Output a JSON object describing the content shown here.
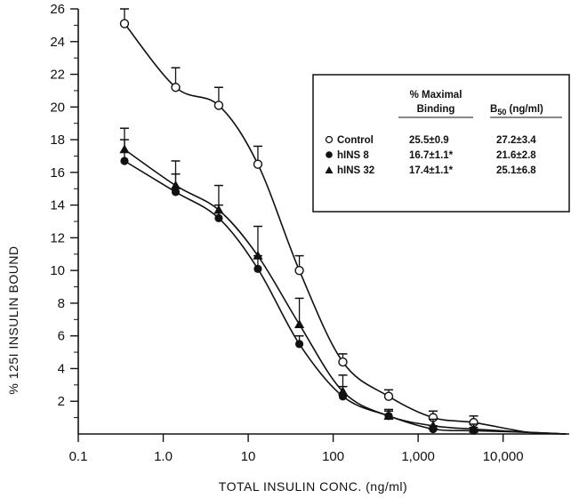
{
  "chart_data": {
    "type": "scatter",
    "xlabel": "TOTAL INSULIN CONC. (ng/ml)",
    "ylabel": "% 125I INSULIN BOUND",
    "x_scale": "log",
    "xlim": [
      0.1,
      60000
    ],
    "ylim": [
      0,
      26
    ],
    "x_ticks": [
      0.1,
      1,
      10,
      100,
      1000,
      10000
    ],
    "x_tick_labels": [
      "0.1",
      "1.0",
      "10",
      "100",
      "1,000",
      "10,000"
    ],
    "y_ticks": [
      2,
      4,
      6,
      8,
      10,
      12,
      14,
      16,
      18,
      20,
      22,
      24,
      26
    ],
    "grid": false,
    "legend_position": "top-right",
    "series": [
      {
        "name": "Control",
        "marker": "open-circle",
        "x": [
          0.35,
          1.4,
          4.5,
          13,
          40,
          130,
          450,
          1500,
          4500
        ],
        "y": [
          25.1,
          21.2,
          20.1,
          16.5,
          10.0,
          4.4,
          2.3,
          1.0,
          0.7
        ],
        "err": [
          0.9,
          1.2,
          1.1,
          1.1,
          0.9,
          0.5,
          0.4,
          0.4,
          0.4
        ]
      },
      {
        "name": "hINS 8",
        "marker": "filled-circle",
        "x": [
          0.35,
          1.4,
          4.5,
          13,
          40,
          130,
          450,
          1500,
          4500
        ],
        "y": [
          16.7,
          14.8,
          13.2,
          10.1,
          5.5,
          2.3,
          1.1,
          0.3,
          0.2
        ],
        "err": [
          1.3,
          1.1,
          0.8,
          0.8,
          0.5,
          0.6,
          0.3,
          0.2,
          0.2
        ]
      },
      {
        "name": "hINS 32",
        "marker": "filled-triangle",
        "x": [
          0.35,
          1.4,
          4.5,
          13,
          40,
          130,
          450,
          1500,
          4500
        ],
        "y": [
          17.4,
          15.2,
          13.7,
          10.9,
          6.7,
          2.6,
          1.1,
          0.5,
          0.3
        ],
        "err": [
          1.3,
          1.5,
          1.5,
          1.8,
          1.6,
          1.0,
          0.4,
          0.4,
          0.3
        ]
      }
    ],
    "legend_table": {
      "col_maximal": "% Maximal",
      "col_binding": "Binding",
      "col_b50_main": "B",
      "col_b50_sub": "50",
      "col_b50_unit": " (ng/ml)",
      "rows": [
        {
          "name": "Control",
          "maximal": "25.5±0.9",
          "b50": "27.2±3.4"
        },
        {
          "name": "hINS 8",
          "maximal": "16.7±1.1*",
          "b50": "21.6±2.8"
        },
        {
          "name": "hINS 32",
          "maximal": "17.4±1.1*",
          "b50": "25.1±6.8"
        }
      ]
    }
  }
}
